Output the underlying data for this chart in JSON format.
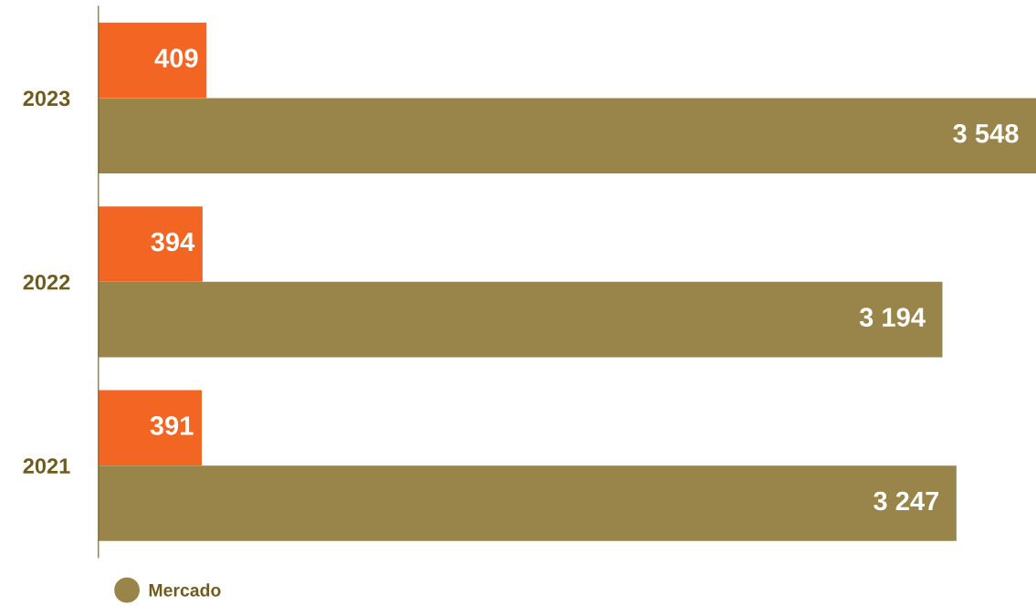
{
  "chart_data": {
    "type": "bar",
    "orientation": "horizontal",
    "categories": [
      "2023",
      "2022",
      "2021"
    ],
    "series": [
      {
        "color": "#f26522",
        "values": [
          409,
          394,
          391
        ],
        "value_labels": [
          "409",
          "394",
          "391"
        ]
      },
      {
        "name": "Mercado",
        "color": "#998549",
        "values": [
          3548,
          3194,
          3247
        ],
        "value_labels": [
          "3 548",
          "3 194",
          "3 247"
        ]
      }
    ],
    "tick_labels": "y",
    "grid": false,
    "legend": "bottom left"
  }
}
